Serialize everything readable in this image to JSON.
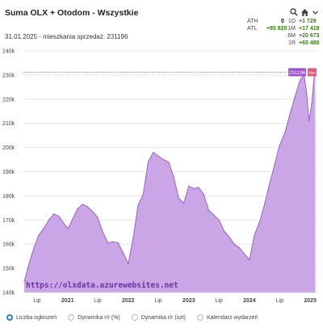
{
  "header": {
    "title": "Suma OLX + Otodom - Wszystkie",
    "subtitle": "31.01.2025 - mieszkania sprzedaż: 231196"
  },
  "stats": {
    "left": [
      {
        "label": "ATH",
        "value": "0"
      },
      {
        "label": "ATL",
        "value": "+85 820"
      }
    ],
    "right": [
      {
        "label": "1D",
        "value": "+1 729"
      },
      {
        "label": "1M",
        "value": "+17 419"
      },
      {
        "label": "6M",
        "value": "+20 673"
      },
      {
        "label": "1R",
        "value": "+65 480"
      }
    ]
  },
  "icons": [
    "magnifier-icon",
    "home-icon",
    "chevron-down-icon"
  ],
  "watermark": "https://olxdata.azurewebsites.net",
  "legend": [
    {
      "label": "Liczba ogłoszeń",
      "selected": true
    },
    {
      "label": "Dynamika r/r (%)",
      "selected": false
    },
    {
      "label": "Dynamika r/r (szt)",
      "selected": false
    },
    {
      "label": "Kalendarz wydarzeń",
      "selected": false
    }
  ],
  "colors": {
    "fill": "#cba6e6",
    "line": "#9b5fc8",
    "price_tag": "#9c4fc9",
    "max_tag": "#e05a7a",
    "positive": "#3c7d19"
  },
  "chart_data": {
    "type": "area",
    "ylim": [
      140000,
      240000
    ],
    "y_ticks": [
      "140k",
      "150k",
      "160k",
      "170k",
      "180k",
      "190k",
      "200k",
      "210k",
      "220k",
      "230k",
      "240k"
    ],
    "x_ticks": [
      {
        "date": "2020-07-01",
        "label": "Lip"
      },
      {
        "date": "2021-01-01",
        "label": "2021"
      },
      {
        "date": "2021-07-01",
        "label": "Lip"
      },
      {
        "date": "2022-01-01",
        "label": "2022"
      },
      {
        "date": "2022-07-01",
        "label": "Lip"
      },
      {
        "date": "2023-01-01",
        "label": "2023"
      },
      {
        "date": "2023-07-01",
        "label": "Lip"
      },
      {
        "date": "2024-01-01",
        "label": "2024"
      },
      {
        "date": "2024-07-01",
        "label": "Lip"
      },
      {
        "date": "2025-01-01",
        "label": "2025"
      }
    ],
    "current_value_label": "231196",
    "max_tag_label": "Max",
    "series": [
      {
        "points": [
          [
            "2020-04-15",
            144500
          ],
          [
            "2020-05-10",
            151000
          ],
          [
            "2020-06-10",
            158000
          ],
          [
            "2020-07-10",
            163500
          ],
          [
            "2020-08-10",
            166500
          ],
          [
            "2020-09-10",
            170000
          ],
          [
            "2020-10-10",
            172500
          ],
          [
            "2020-11-10",
            171500
          ],
          [
            "2020-12-10",
            168500
          ],
          [
            "2021-01-05",
            166500
          ],
          [
            "2021-02-01",
            170500
          ],
          [
            "2021-03-01",
            174500
          ],
          [
            "2021-04-01",
            176500
          ],
          [
            "2021-05-01",
            175500
          ],
          [
            "2021-06-01",
            173500
          ],
          [
            "2021-07-01",
            171000
          ],
          [
            "2021-08-01",
            165000
          ],
          [
            "2021-09-01",
            160500
          ],
          [
            "2021-10-01",
            161000
          ],
          [
            "2021-11-01",
            160500
          ],
          [
            "2021-12-01",
            156500
          ],
          [
            "2022-01-01",
            152000
          ],
          [
            "2022-02-01",
            163000
          ],
          [
            "2022-03-01",
            176000
          ],
          [
            "2022-04-01",
            180500
          ],
          [
            "2022-05-01",
            194000
          ],
          [
            "2022-06-01",
            198000
          ],
          [
            "2022-07-01",
            196500
          ],
          [
            "2022-08-01",
            195000
          ],
          [
            "2022-09-01",
            194000
          ],
          [
            "2022-10-01",
            188000
          ],
          [
            "2022-11-01",
            179000
          ],
          [
            "2022-12-01",
            177000
          ],
          [
            "2023-01-01",
            184000
          ],
          [
            "2023-02-01",
            183000
          ],
          [
            "2023-03-01",
            183500
          ],
          [
            "2023-04-01",
            180500
          ],
          [
            "2023-05-01",
            174000
          ],
          [
            "2023-06-01",
            172000
          ],
          [
            "2023-07-01",
            170000
          ],
          [
            "2023-08-01",
            165500
          ],
          [
            "2023-09-01",
            163000
          ],
          [
            "2023-10-01",
            160000
          ],
          [
            "2023-11-01",
            158500
          ],
          [
            "2023-12-01",
            156000
          ],
          [
            "2024-01-01",
            153500
          ],
          [
            "2024-02-01",
            164000
          ],
          [
            "2024-03-01",
            169000
          ],
          [
            "2024-04-01",
            176500
          ],
          [
            "2024-05-01",
            185000
          ],
          [
            "2024-06-01",
            193000
          ],
          [
            "2024-07-01",
            201000
          ],
          [
            "2024-08-01",
            206000
          ],
          [
            "2024-09-01",
            214000
          ],
          [
            "2024-10-01",
            221000
          ],
          [
            "2024-11-01",
            228000
          ],
          [
            "2024-11-25",
            230000
          ],
          [
            "2024-12-10",
            222500
          ],
          [
            "2024-12-25",
            211000
          ],
          [
            "2025-01-10",
            218000
          ],
          [
            "2025-01-25",
            229500
          ],
          [
            "2025-01-31",
            231196
          ]
        ]
      }
    ]
  }
}
